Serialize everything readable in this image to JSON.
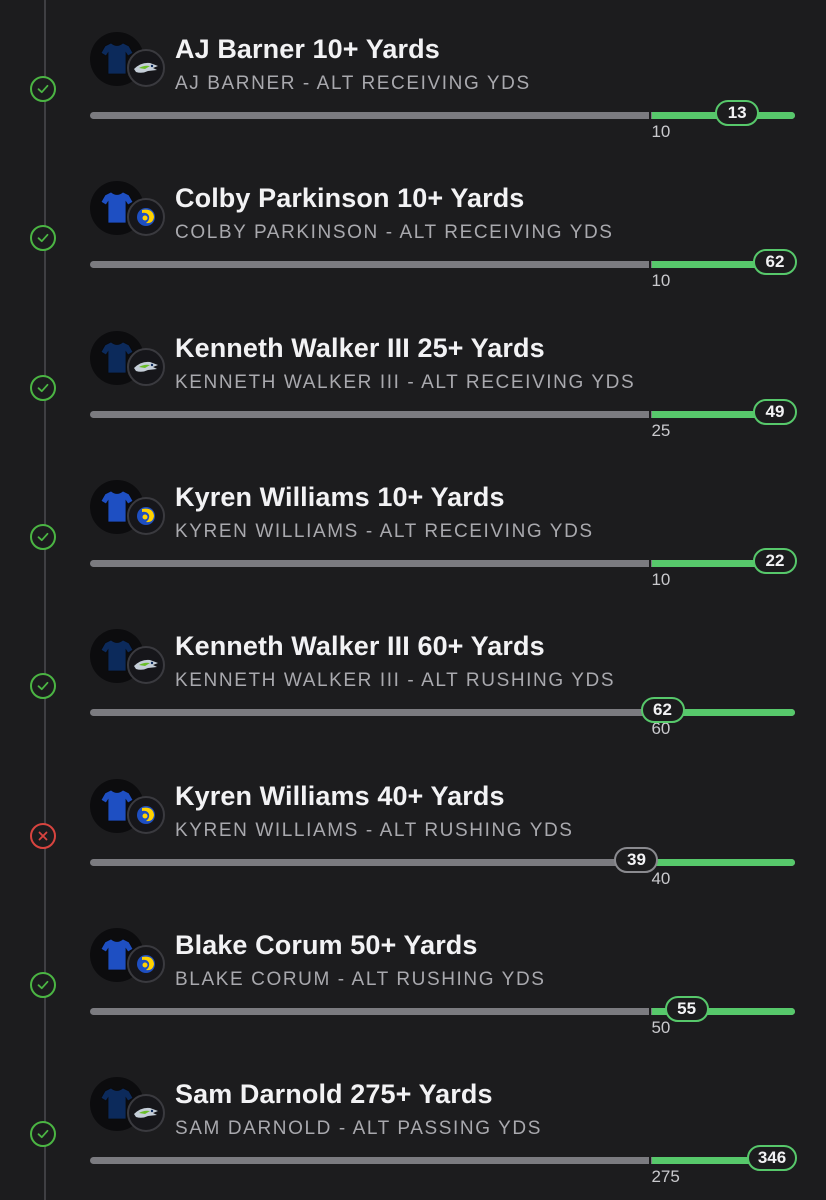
{
  "colors": {
    "background": "#1c1c1e",
    "win": "#4bb543",
    "loss": "#d8443f",
    "progress": "#57c86b",
    "track": "#7b7b80",
    "seahawks_navy": "#0c2a5b",
    "rams_blue": "#1e4fc2"
  },
  "legs": [
    {
      "title": "AJ Barner 10+ Yards",
      "subtitle": "AJ BARNER - ALT RECEIVING YDS",
      "threshold": 10,
      "actual": 13,
      "max": 15,
      "result": "won",
      "status_icon": "check-icon",
      "team": "seahawks",
      "team_icon": "seahawks-logo-icon"
    },
    {
      "title": "Colby Parkinson 10+ Yards",
      "subtitle": "COLBY PARKINSON - ALT RECEIVING YDS",
      "threshold": 10,
      "actual": 62,
      "max": 62,
      "result": "won",
      "status_icon": "check-icon",
      "team": "rams",
      "team_icon": "rams-logo-icon"
    },
    {
      "title": "Kenneth Walker III 25+ Yards",
      "subtitle": "KENNETH WALKER III - ALT RECEIVING YDS",
      "threshold": 25,
      "actual": 49,
      "max": 49,
      "result": "won",
      "status_icon": "check-icon",
      "team": "seahawks",
      "team_icon": "seahawks-logo-icon"
    },
    {
      "title": "Kyren Williams 10+ Yards",
      "subtitle": "KYREN WILLIAMS - ALT RECEIVING YDS",
      "threshold": 10,
      "actual": 22,
      "max": 22,
      "result": "won",
      "status_icon": "check-icon",
      "team": "rams",
      "team_icon": "rams-logo-icon"
    },
    {
      "title": "Kenneth Walker III 60+ Yards",
      "subtitle": "KENNETH WALKER III - ALT RUSHING YDS",
      "threshold": 60,
      "actual": 62,
      "max": 84,
      "result": "won",
      "status_icon": "check-icon",
      "team": "seahawks",
      "team_icon": "seahawks-logo-icon"
    },
    {
      "title": "Kyren Williams 40+ Yards",
      "subtitle": "KYREN WILLIAMS - ALT RUSHING YDS",
      "threshold": 40,
      "actual": 39,
      "max": 57,
      "result": "lost",
      "status_icon": "x-icon",
      "team": "rams",
      "team_icon": "rams-logo-icon"
    },
    {
      "title": "Blake Corum 50+ Yards",
      "subtitle": "BLAKE CORUM - ALT RUSHING YDS",
      "threshold": 50,
      "actual": 55,
      "max": 70,
      "result": "won",
      "status_icon": "check-icon",
      "team": "rams",
      "team_icon": "rams-logo-icon"
    },
    {
      "title": "Sam Darnold 275+ Yards",
      "subtitle": "SAM DARNOLD - ALT PASSING YDS",
      "threshold": 275,
      "actual": 346,
      "max": 346,
      "result": "won",
      "status_icon": "check-icon",
      "team": "seahawks",
      "team_icon": "seahawks-logo-icon"
    }
  ]
}
